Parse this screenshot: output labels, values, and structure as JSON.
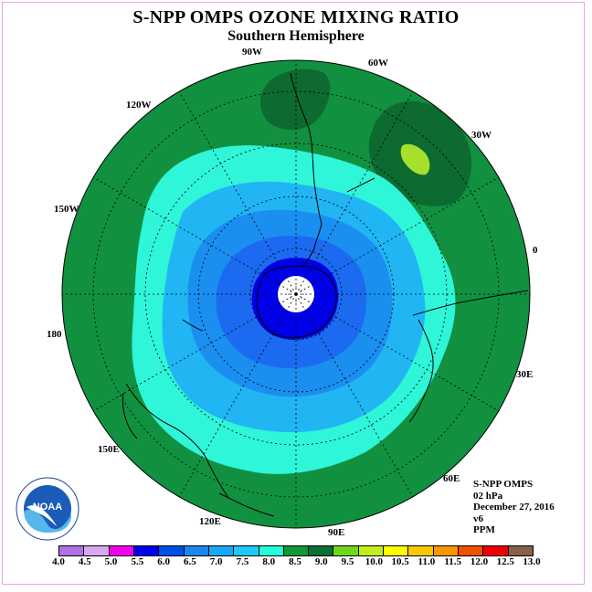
{
  "title": "S-NPP OMPS OZONE MIXING RATIO",
  "subtitle": "Southern Hemisphere",
  "longitude_labels": {
    "lon_90w": "90W",
    "lon_60w": "60W",
    "lon_30w": "30W",
    "lon_0": "0",
    "lon_30e": "30E",
    "lon_60e": "60E",
    "lon_90e": "90E",
    "lon_120e": "120E",
    "lon_150e": "150E",
    "lon_180": "180",
    "lon_150w": "150W",
    "lon_120w": "120W"
  },
  "info": {
    "instrument": "S-NPP OMPS",
    "level": "02 hPa",
    "date": "December 27, 2016",
    "version": "v6",
    "units": "PPM"
  },
  "logo_text": "NOAA",
  "colorbar": {
    "ticks": [
      "4.0",
      "4.5",
      "5.0",
      "5.5",
      "6.0",
      "6.5",
      "7.0",
      "7.5",
      "8.0",
      "8.5",
      "9.0",
      "9.5",
      "10.0",
      "10.5",
      "11.0",
      "11.5",
      "12.0",
      "12.5",
      "13.0"
    ],
    "colors": [
      "#b070e8",
      "#d8a8f0",
      "#f000f0",
      "#0000f0",
      "#0050e8",
      "#1888f0",
      "#18a8f8",
      "#20c8f8",
      "#20ffd8",
      "#109838",
      "#087030",
      "#70d818",
      "#c0f018",
      "#ffff00",
      "#f8c800",
      "#f89800",
      "#f05000",
      "#f00000",
      "#886048"
    ]
  },
  "map_colors": {
    "ocean_ring": "#119140",
    "dark_green": "#0d6a31",
    "light_green": "#a6e02d",
    "cyan": "#2ff5d9",
    "blue_light": "#21b5f4",
    "blue_mid": "#1a8ff0",
    "blue_dark": "#1c6af0",
    "royal": "#0000e8",
    "pole": "#ffffff"
  }
}
